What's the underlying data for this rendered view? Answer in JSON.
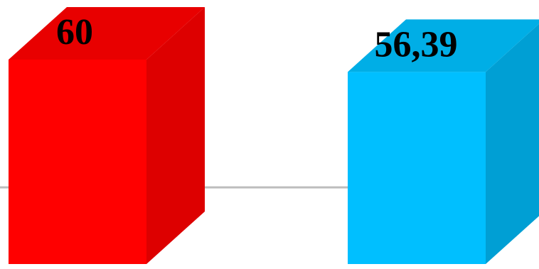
{
  "chart_data": {
    "type": "bar",
    "style": "3d-column",
    "grid": false,
    "legend": "none",
    "ylim": [
      0,
      100
    ],
    "series": [
      {
        "values": [
          60,
          56.39
        ],
        "labels": [
          "60",
          "56,39"
        ],
        "colors": {
          "front": [
            "#ff0000",
            "#00bfff"
          ],
          "side": [
            "#dd0000",
            "#009fd4"
          ],
          "top": [
            "#e80000",
            "#00aee6"
          ]
        }
      }
    ]
  }
}
